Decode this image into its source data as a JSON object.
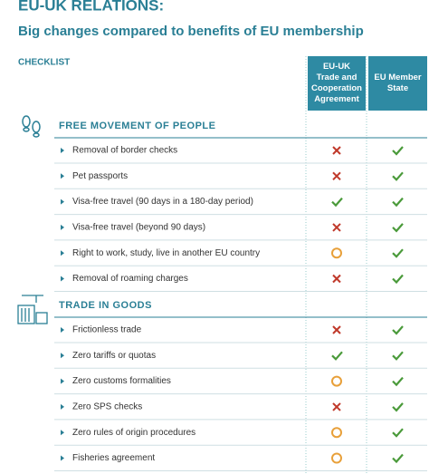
{
  "header": {
    "title": "EU-UK RELATIONS:",
    "subtitle": "Big changes compared to benefits of EU membership",
    "checklist": "CHECKLIST"
  },
  "columns": [
    "EU-UK Trade and Cooperation Agreement",
    "EU Member State"
  ],
  "sections": [
    {
      "title": "FREE MOVEMENT OF PEOPLE",
      "rows": [
        "Removal of border checks",
        "Pet passports",
        "Visa-free travel (90 days in a 180-day period)",
        "Visa-free travel (beyond 90 days)",
        "Right to work, study, live in another EU country",
        "Removal of roaming charges"
      ]
    },
    {
      "title": "TRADE IN GOODS",
      "rows": [
        "Frictionless trade",
        "Zero tariffs or quotas",
        "Zero customs formalities",
        "Zero SPS checks",
        "Zero rules of origin procedures",
        "Fisheries agreement"
      ]
    }
  ]
}
